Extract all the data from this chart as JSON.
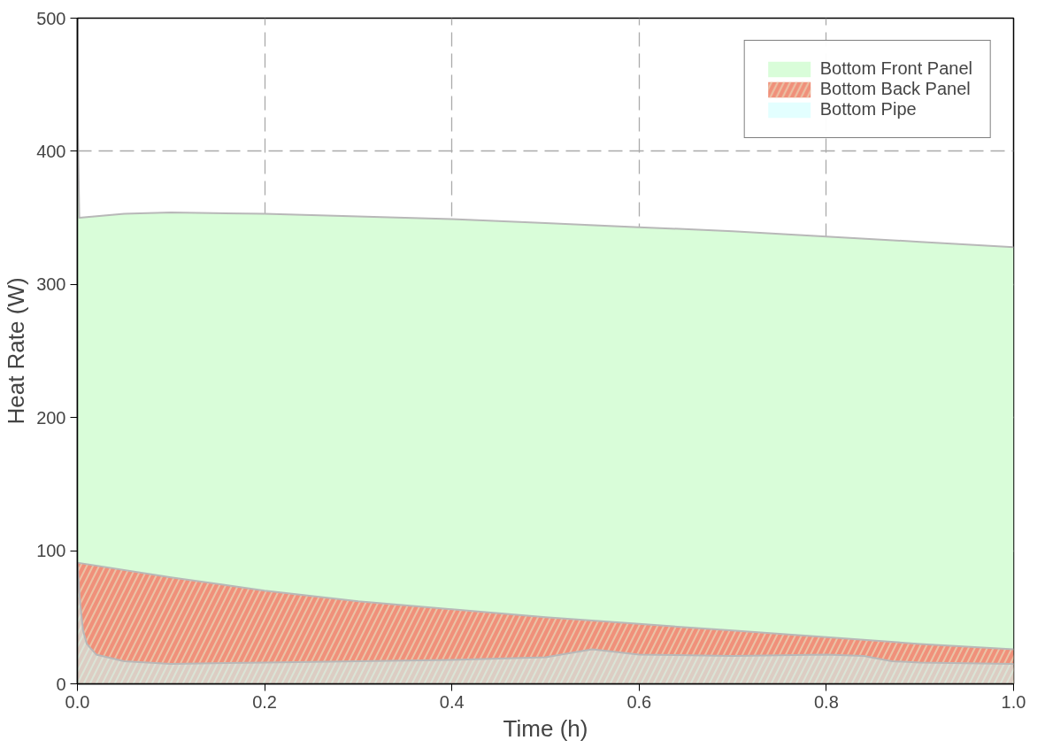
{
  "chart_data": {
    "type": "area",
    "xlabel": "Time (h)",
    "ylabel": "Heat Rate (W)",
    "xlim": [
      0,
      1
    ],
    "ylim": [
      0,
      500
    ],
    "xticks": [
      {
        "value": 0,
        "label": "0.0"
      },
      {
        "value": 0.2,
        "label": "0.2"
      },
      {
        "value": 0.4,
        "label": "0.4"
      },
      {
        "value": 0.6,
        "label": "0.6"
      },
      {
        "value": 0.8,
        "label": "0.8"
      },
      {
        "value": 1,
        "label": "1.0"
      }
    ],
    "yticks": [
      0,
      100,
      200,
      300,
      400,
      500
    ],
    "grid": true,
    "legend": "top right",
    "series": [
      {
        "name": "Bottom Front Panel",
        "color": "#d9fdd9",
        "x": [
          0,
          0.002,
          0.05,
          0.1,
          0.2,
          0.3,
          0.4,
          0.5,
          0.6,
          0.7,
          0.8,
          0.9,
          1.0
        ],
        "values": [
          440,
          350,
          353,
          354,
          353,
          351,
          349,
          346,
          343,
          340,
          336,
          332,
          328
        ]
      },
      {
        "name": "Bottom Back Panel",
        "color": "#f0907a",
        "x": [
          0,
          0.1,
          0.2,
          0.3,
          0.4,
          0.5,
          0.6,
          0.7,
          0.8,
          0.9,
          1.0
        ],
        "values": [
          91,
          80,
          70,
          62,
          56,
          50,
          45,
          40,
          35,
          30,
          26
        ]
      },
      {
        "name": "Bottom Pipe",
        "color": "#ccffff",
        "x": [
          0,
          0.003,
          0.006,
          0.01,
          0.02,
          0.05,
          0.1,
          0.2,
          0.3,
          0.4,
          0.5,
          0.55,
          0.6,
          0.7,
          0.8,
          0.84,
          0.87,
          0.9,
          1.0
        ],
        "values": [
          90,
          60,
          40,
          30,
          22,
          17,
          15,
          16,
          17,
          18,
          20,
          26,
          22,
          21,
          22,
          21,
          17,
          16,
          15
        ]
      }
    ]
  }
}
